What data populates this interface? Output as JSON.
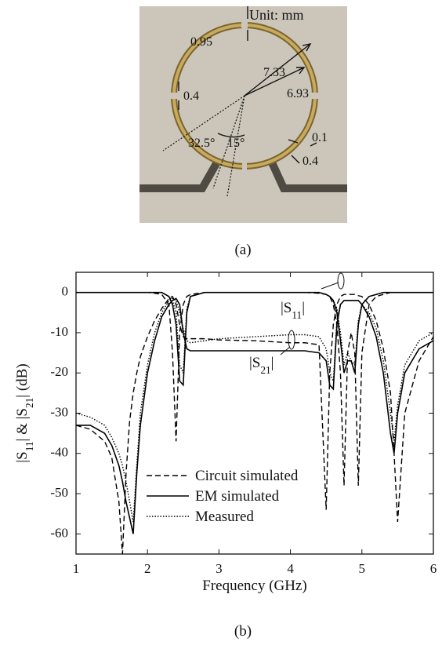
{
  "figure_a": {
    "unit": "Unit: mm",
    "dimensions": [
      "0.95",
      "7.33",
      "6.93",
      "0.4",
      "32.5°",
      "15°",
      "0.1",
      "0.4"
    ],
    "caption": "(a)"
  },
  "chart_data": {
    "type": "line",
    "caption": "(b)",
    "x_label": "Frequency (GHz)",
    "y_label": [
      "|S",
      "11",
      "| & |S",
      "21",
      "| (dB)"
    ],
    "s11_label": [
      "|S",
      "11",
      "|"
    ],
    "s21_label": [
      "|S",
      "21",
      "|"
    ],
    "xlim": [
      1,
      6
    ],
    "xticks": [
      1,
      2,
      3,
      4,
      5,
      6
    ],
    "ylim": [
      -65,
      5
    ],
    "yticks": [
      0,
      -10,
      -20,
      -30,
      -40,
      -50,
      -60
    ],
    "grid": false,
    "legend": "lower left",
    "color": "#000000",
    "x": [
      1.0,
      1.2,
      1.4,
      1.5,
      1.6,
      1.65,
      1.7,
      1.75,
      1.8,
      1.85,
      1.9,
      2.0,
      2.1,
      2.2,
      2.3,
      2.35,
      2.4,
      2.45,
      2.5,
      2.55,
      2.6,
      2.8,
      3.0,
      3.5,
      4.0,
      4.2,
      4.4,
      4.5,
      4.55,
      4.6,
      4.65,
      4.7,
      4.75,
      4.8,
      4.85,
      4.9,
      4.95,
      5.0,
      5.1,
      5.2,
      5.3,
      5.4,
      5.45,
      5.5,
      5.6,
      5.8,
      6.0
    ],
    "series": [
      {
        "name": "Circuit simulated",
        "dash": "dashed",
        "s21": [
          -33,
          -34,
          -37,
          -41,
          -52,
          -65,
          -45,
          -32,
          -25,
          -20,
          -16,
          -11,
          -7,
          -4,
          -1.5,
          -1,
          -3,
          -8,
          -11,
          -11.5,
          -11.5,
          -11.5,
          -11.8,
          -12,
          -12.5,
          -12.5,
          -13,
          -54,
          -20,
          -8,
          -3,
          -1,
          -0.5,
          -0.5,
          -0.5,
          -0.5,
          -0.8,
          -1,
          -3,
          -7,
          -14,
          -25,
          -40,
          -57,
          -30,
          -17,
          -11
        ],
        "s11": [
          0,
          0,
          0,
          0,
          0,
          0,
          0,
          0,
          0,
          0,
          0,
          0,
          -0.2,
          -0.5,
          -3,
          -15,
          -37,
          -10,
          -3,
          -1,
          -0.5,
          0,
          0,
          0,
          0,
          0,
          -0.2,
          -0.5,
          -1,
          -3,
          -8,
          -20,
          -48,
          -15,
          -10,
          -15,
          -48,
          -15,
          -3,
          -1,
          -0.5,
          0,
          0,
          0,
          0,
          0,
          0
        ]
      },
      {
        "name": "EM simulated",
        "dash": "solid",
        "s21": [
          -33,
          -33,
          -35,
          -38,
          -43,
          -47,
          -52,
          -56,
          -60,
          -45,
          -33,
          -20,
          -12,
          -6,
          -3,
          -2,
          -1.5,
          -3,
          -10,
          -14,
          -14.5,
          -14.5,
          -14.5,
          -14.5,
          -14.5,
          -14.5,
          -15,
          -17,
          -23,
          -24,
          -8,
          -3,
          -2,
          -2,
          -2,
          -2,
          -2,
          -3,
          -6,
          -11,
          -20,
          -35,
          -40,
          -30,
          -20,
          -14,
          -12
        ],
        "s11": [
          0,
          0,
          0,
          0,
          0,
          0,
          0,
          0,
          0,
          0,
          0,
          0,
          0,
          0,
          -1,
          -3,
          -8,
          -22,
          -23,
          -5,
          -1,
          0,
          0,
          0,
          0,
          0,
          0,
          -0.5,
          -1,
          -2,
          -5,
          -12,
          -20,
          -17,
          -17,
          -20,
          -8,
          -3,
          -1,
          -0.5,
          0,
          0,
          0,
          0,
          0,
          0,
          0
        ]
      },
      {
        "name": "Measured",
        "dash": "dotted",
        "s21": [
          -30,
          -31,
          -33,
          -36,
          -40,
          -43,
          -47,
          -52,
          -57,
          -43,
          -30,
          -18,
          -10,
          -5,
          -2,
          -1.5,
          -2,
          -5,
          -9,
          -12,
          -12.5,
          -12,
          -11.5,
          -11,
          -10.5,
          -10.5,
          -11,
          -14,
          -20,
          -22,
          -7,
          -3,
          -2,
          -2,
          -2,
          -2,
          -2,
          -3,
          -5,
          -9,
          -17,
          -30,
          -37,
          -28,
          -18,
          -12,
          -10
        ],
        "s11": [
          0,
          0,
          0,
          0,
          0,
          0,
          0,
          0,
          0,
          0,
          0,
          0,
          0,
          0,
          -1,
          -2,
          -5,
          -18,
          -20,
          -4,
          -1,
          0,
          0,
          0,
          0,
          0,
          0,
          -0.5,
          -1,
          -2,
          -4,
          -10,
          -18,
          -15,
          -17,
          -18,
          -7,
          -3,
          -1,
          -0.5,
          0,
          0,
          0,
          0,
          0,
          0,
          0
        ]
      }
    ]
  }
}
